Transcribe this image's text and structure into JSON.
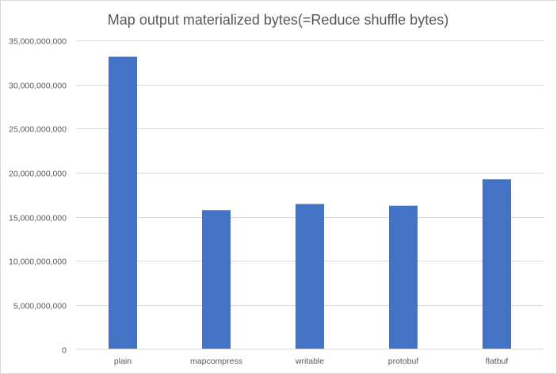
{
  "chart_data": {
    "type": "bar",
    "title": "Map output materialized bytes(=Reduce shuffle bytes)",
    "categories": [
      "plain",
      "mapcompress",
      "writable",
      "protobuf",
      "flatbuf"
    ],
    "values": [
      33150000000,
      15750000000,
      16450000000,
      16250000000,
      19250000000
    ],
    "ylim": [
      0,
      35000000000
    ],
    "yticks": [
      0,
      5000000000,
      10000000000,
      15000000000,
      20000000000,
      25000000000,
      30000000000,
      35000000000
    ],
    "ytick_labels": [
      "0",
      "5,000,000,000",
      "10,000,000,000",
      "15,000,000,000",
      "20,000,000,000",
      "25,000,000,000",
      "30,000,000,000",
      "35,000,000,000"
    ],
    "xlabel": "",
    "ylabel": "",
    "grid": true,
    "legend": "none",
    "bar_color": "#4472c4"
  }
}
